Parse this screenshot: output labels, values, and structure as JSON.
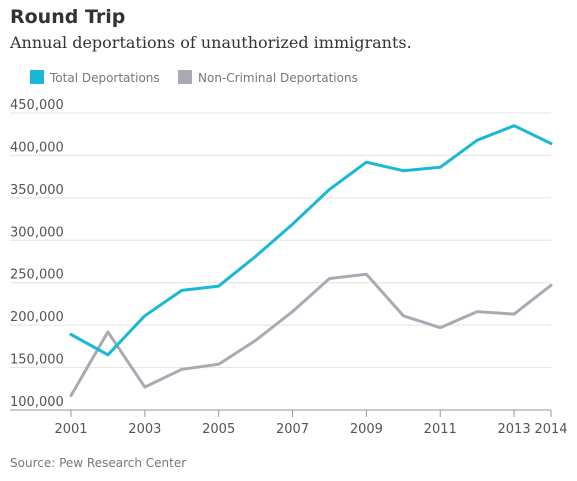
{
  "title": "Round Trip",
  "subtitle": "Annual deportations of unauthorized immigrants.",
  "source": "Source: Pew Research Center",
  "chart_data": {
    "type": "line",
    "x": [
      2001,
      2002,
      2003,
      2004,
      2005,
      2006,
      2007,
      2008,
      2009,
      2010,
      2011,
      2012,
      2013,
      2014
    ],
    "x_tick_labels": [
      "2001",
      "2003",
      "2005",
      "2007",
      "2009",
      "2011",
      "2013",
      "2014"
    ],
    "x_tick_values": [
      2001,
      2003,
      2005,
      2007,
      2009,
      2011,
      2013,
      2014
    ],
    "y_tick_labels": [
      "100,000",
      "150,000",
      "200,000",
      "250,000",
      "300,000",
      "350,000",
      "400,000",
      "450,000"
    ],
    "y_tick_values": [
      100000,
      150000,
      200000,
      250000,
      300000,
      350000,
      400000,
      450000
    ],
    "ylim": [
      100000,
      450000
    ],
    "xlim": [
      2001,
      2014
    ],
    "grid": true,
    "legend_position": "top-left",
    "series": [
      {
        "name": "Total Deportations",
        "color": "#1ab7d6",
        "values": [
          189000,
          165000,
          211000,
          241000,
          246000,
          281000,
          319000,
          360000,
          392000,
          382000,
          386000,
          418000,
          435000,
          414000
        ]
      },
      {
        "name": "Non-Criminal Deportations",
        "color": "#aaa9b4",
        "values": [
          117000,
          192000,
          127000,
          148000,
          154000,
          182000,
          216000,
          255000,
          260000,
          211000,
          197000,
          216000,
          213000,
          247000
        ]
      }
    ]
  }
}
